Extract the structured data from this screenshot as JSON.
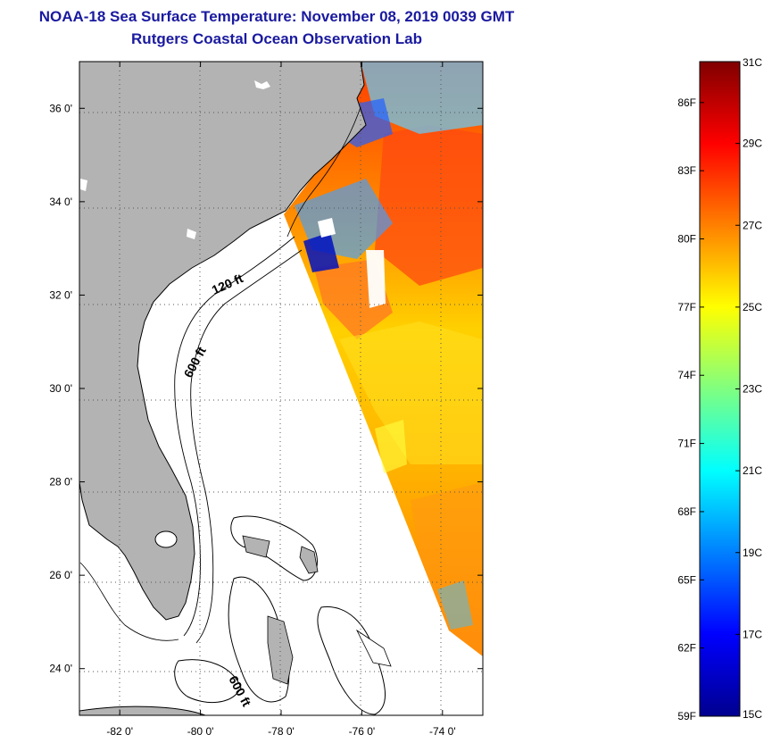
{
  "title": {
    "line1": "NOAA-18 Sea Surface Temperature:  November 08, 2019 0039 GMT",
    "line2": "Rutgers Coastal Ocean Observation Lab"
  },
  "map": {
    "lon_range": [
      -83,
      -73
    ],
    "lat_range": [
      23,
      37
    ],
    "lon_ticks": [
      {
        "value": -82,
        "label": "-82 0'"
      },
      {
        "value": -80,
        "label": "-80 0'"
      },
      {
        "value": -78,
        "label": "-78 0'"
      },
      {
        "value": -76,
        "label": "-76 0'"
      },
      {
        "value": -74,
        "label": "-74 0'"
      }
    ],
    "lat_ticks": [
      {
        "value": 36,
        "label": "36 0'"
      },
      {
        "value": 34,
        "label": "34 0'"
      },
      {
        "value": 32,
        "label": "32 0'"
      },
      {
        "value": 30,
        "label": "30 0'"
      },
      {
        "value": 28,
        "label": "28 0'"
      },
      {
        "value": 26,
        "label": "26 0'"
      },
      {
        "value": 24,
        "label": "24 0'"
      }
    ],
    "contour_labels": [
      "120 ft",
      "600 ft",
      "600 ft"
    ],
    "grid": "dotted",
    "land_color": "#b3b3b3"
  },
  "colorbar": {
    "fahrenheit_labels": [
      "86F",
      "83F",
      "80F",
      "77F",
      "74F",
      "71F",
      "68F",
      "65F",
      "62F",
      "59F"
    ],
    "celsius_labels": [
      "31C",
      "29C",
      "27C",
      "25C",
      "23C",
      "21C",
      "19C",
      "17C",
      "15C"
    ],
    "range_c": [
      15,
      31
    ],
    "colormap": "jet",
    "colors": [
      "#00008f",
      "#0000ff",
      "#0080ff",
      "#00ffff",
      "#80ff80",
      "#ffff00",
      "#ff8000",
      "#ff0000",
      "#800000"
    ]
  }
}
